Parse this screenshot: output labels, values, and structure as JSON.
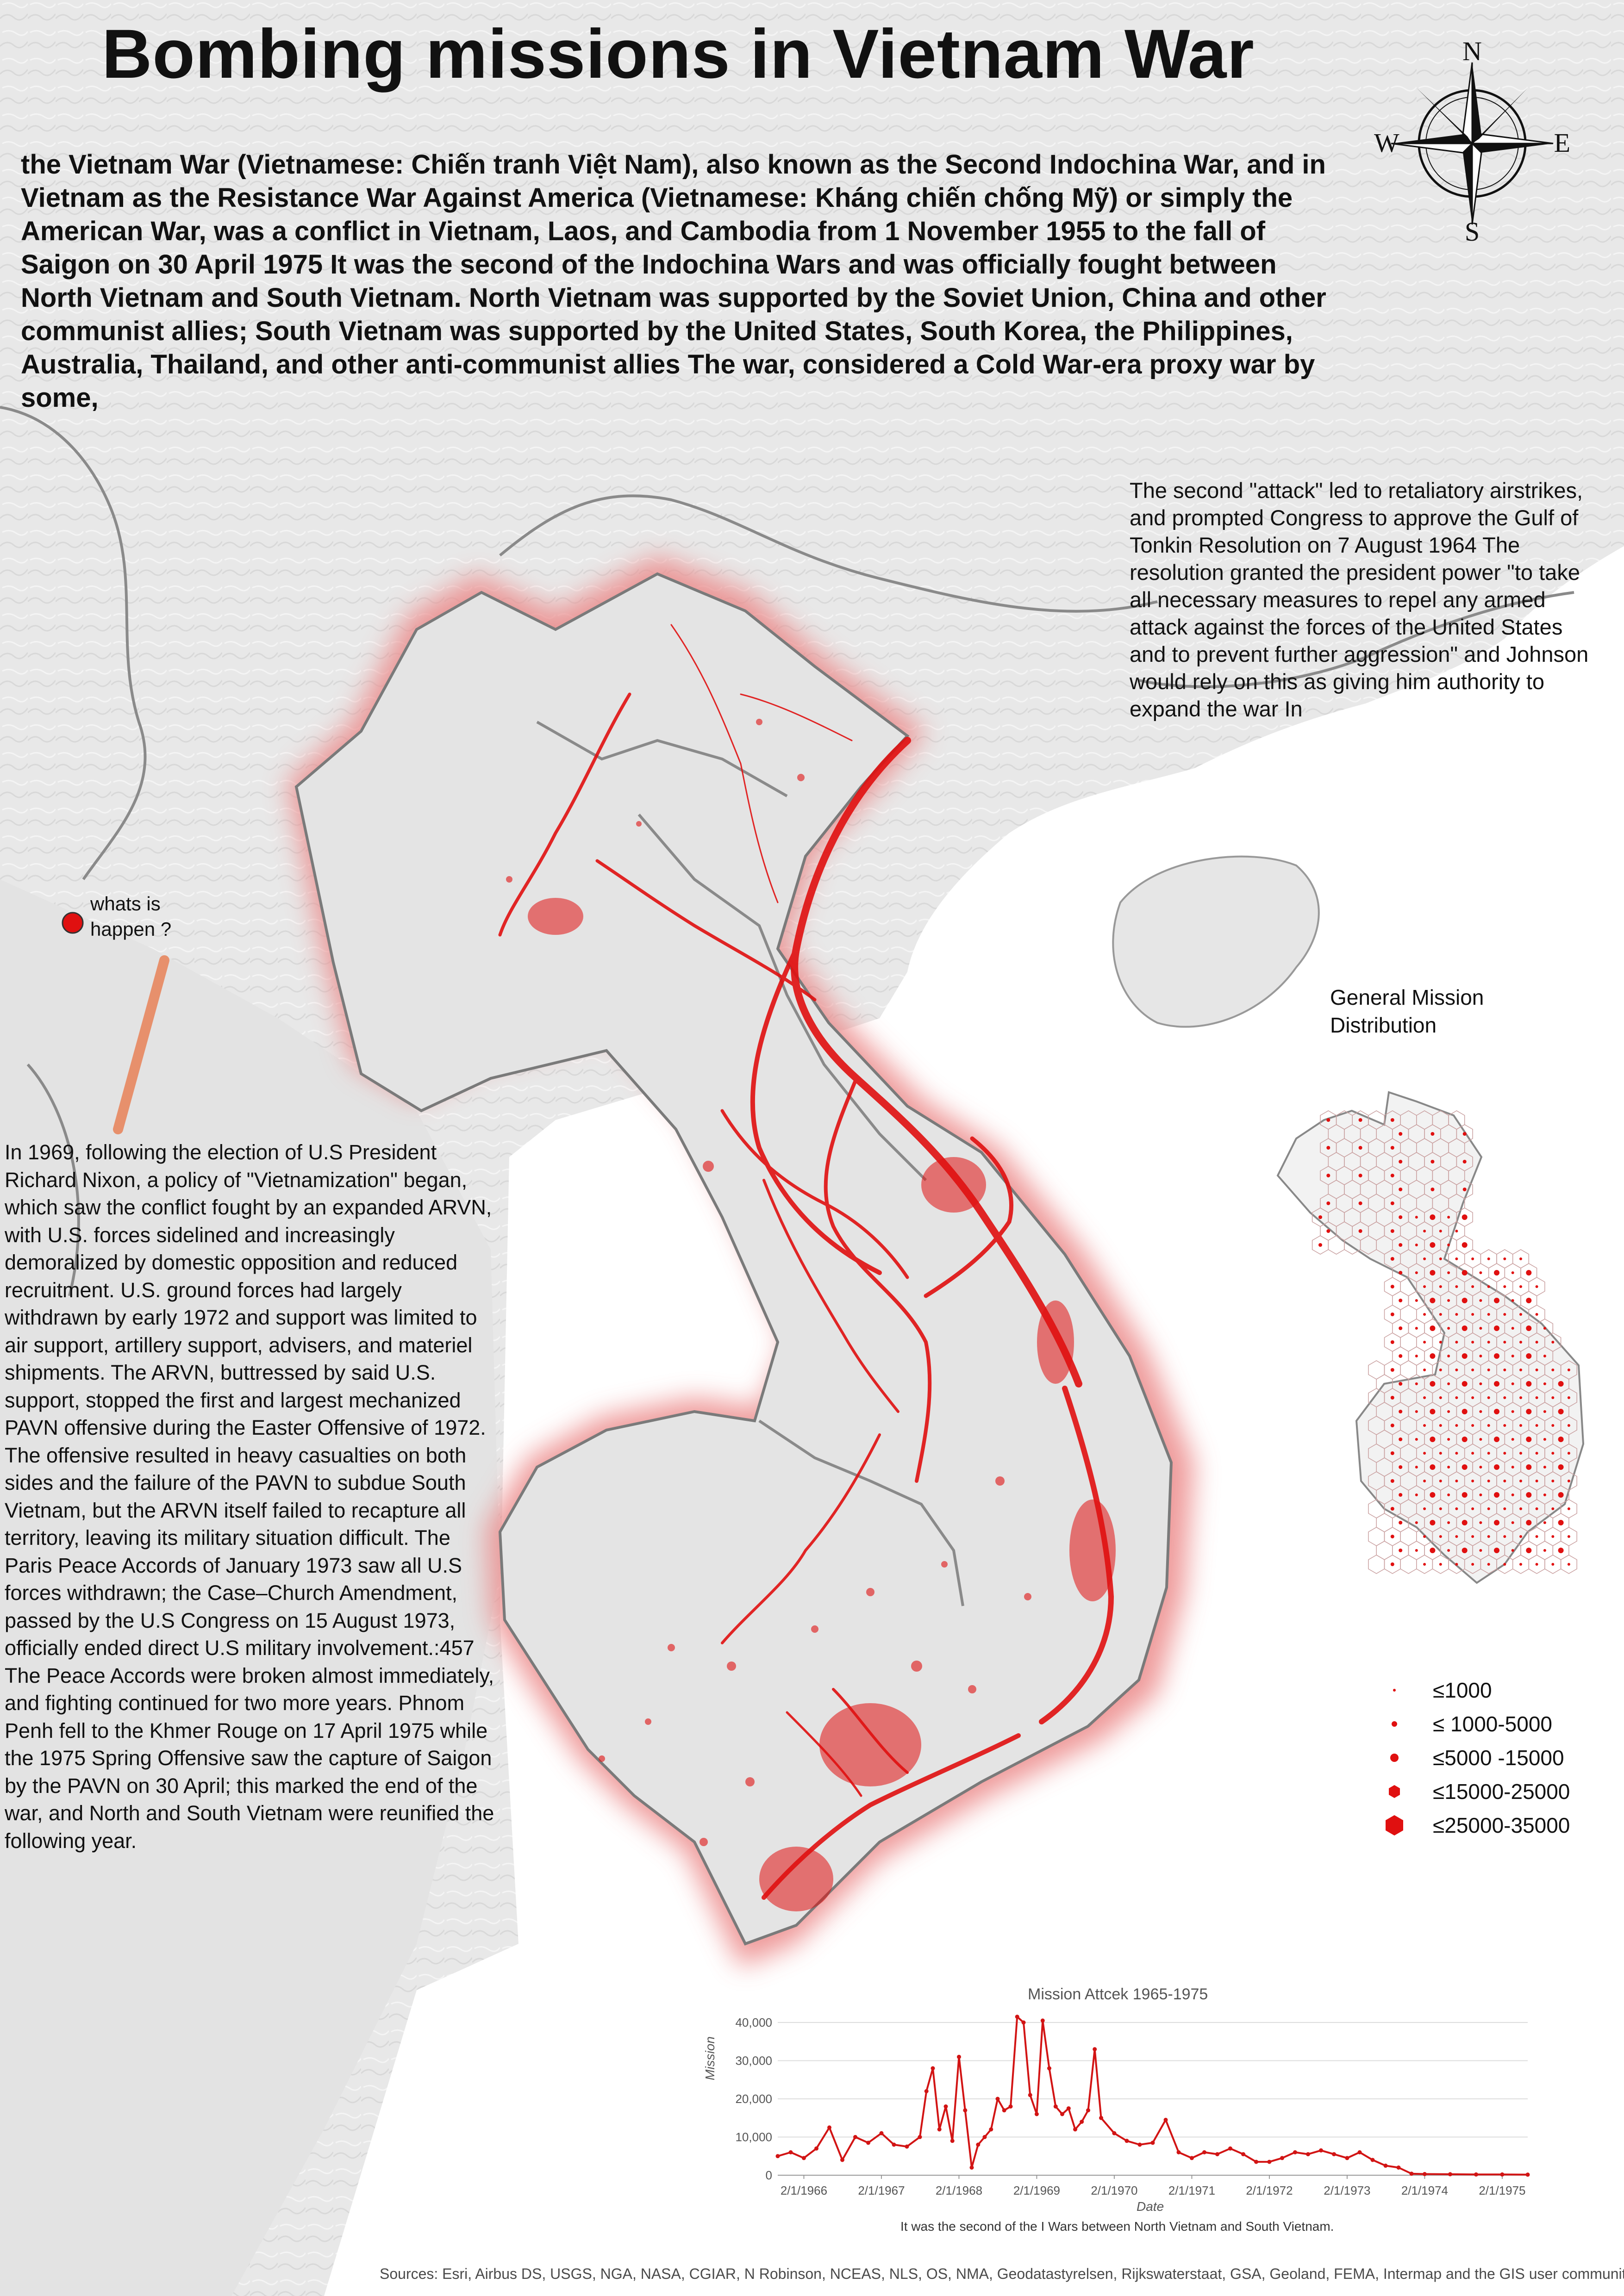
{
  "title": "Bombing missions in Vietnam War",
  "intro_text": "the Vietnam War (Vietnamese: Chiến tranh Việt Nam), also known as the Second Indochina War, and in Vietnam as the Resistance War Against America (Vietnamese: Kháng chiến chống Mỹ) or simply the American War, was a conflict in Vietnam, Laos, and Cambodia from 1 November 1955 to the fall of Saigon on 30 April 1975 It was the second of the Indochina Wars and was officially fought between North Vietnam and South Vietnam. North Vietnam was supported by the Soviet Union, China and other communist allies; South Vietnam was supported by the United States, South Korea, the Philippines, Australia, Thailand, and other anti-communist allies The war, considered a Cold War-era proxy war by some,",
  "right_text": "The second \"attack\" led to retaliatory airstrikes, and prompted Congress to approve the Gulf of Tonkin Resolution on 7 August 1964 The resolution granted the president power \"to take all necessary measures to repel any armed attack against the forces of the United States and to prevent further aggression\" and Johnson would rely on this as giving him authority to expand the war In",
  "left_text": "In 1969, following the election of U.S President Richard Nixon, a policy of \"Vietnamization\" began, which saw the conflict fought by an expanded ARVN, with U.S. forces sidelined and increasingly demoralized by domestic opposition and reduced recruitment. U.S. ground forces had largely withdrawn by early 1972 and support was limited to air support, artillery support, advisers, and materiel shipments. The ARVN, buttressed by said U.S. support, stopped the first and largest mechanized PAVN offensive during the Easter Offensive of 1972. The offensive resulted in heavy casualties on both sides and the failure of the PAVN to subdue South Vietnam, but the ARVN itself failed to recapture all territory, leaving its military situation difficult. The Paris Peace Accords of January 1973 saw all U.S forces withdrawn; the Case–Church Amendment, passed by the U.S Congress on 15 August 1973, officially ended direct U.S military involvement.:457 The Peace Accords were broken almost immediately, and fighting continued for two more years. Phnom Penh fell to the Khmer Rouge on 17 April 1975 while the 1975 Spring Offensive saw the capture of Saigon by the PAVN on 30 April; this marked the end of the war, and North and South Vietnam were reunified the following year.",
  "marker_label": "whats is happen ?",
  "compass": {
    "n": "N",
    "s": "S",
    "e": "E",
    "w": "W"
  },
  "hex_map_title": "General Mission Distribution",
  "legend": [
    {
      "label": "≤1000",
      "symbol": "hexagon-xs"
    },
    {
      "label": "≤ 1000-5000",
      "symbol": "hexagon-s"
    },
    {
      "label": "≤5000 -15000",
      "symbol": "hexagon-m"
    },
    {
      "label": "≤15000-25000",
      "symbol": "hexagon-l"
    },
    {
      "label": "≤25000-35000",
      "symbol": "hexagon-xl"
    }
  ],
  "colors": {
    "mission_red": "#e01010",
    "land": "#e6e6e6",
    "sea": "#ffffff",
    "border": "#8a8a8a",
    "halo": "#f2a0a0"
  },
  "chart_data": {
    "type": "line",
    "title": "Mission Attcek  1965-1975",
    "xlabel": "Date",
    "ylabel": "Mission",
    "caption": "It was the second of the I Wars  between North Vietnam and South Vietnam.",
    "ylim": [
      0,
      40000
    ],
    "yticks": [
      "0",
      "10,000",
      "20,000",
      "30,000",
      "40,000"
    ],
    "xticks": [
      "2/1/1966",
      "2/1/1967",
      "2/1/1968",
      "2/1/1969",
      "2/1/1970",
      "2/1/1971",
      "2/1/1972",
      "2/1/1973",
      "2/1/1974",
      "2/1/1975"
    ],
    "xrange": [
      "1965-10-01",
      "1975-06-01"
    ],
    "grid": true,
    "series": [
      {
        "color": "#d21414",
        "points": [
          [
            "1965-10-01",
            5000
          ],
          [
            "1965-12-01",
            6000
          ],
          [
            "1966-02-01",
            4500
          ],
          [
            "1966-04-01",
            7000
          ],
          [
            "1966-06-01",
            12500
          ],
          [
            "1966-08-01",
            4000
          ],
          [
            "1966-10-01",
            10000
          ],
          [
            "1966-12-01",
            8500
          ],
          [
            "1967-02-01",
            11000
          ],
          [
            "1967-04-01",
            8000
          ],
          [
            "1967-06-01",
            7500
          ],
          [
            "1967-08-01",
            10000
          ],
          [
            "1967-09-01",
            22000
          ],
          [
            "1967-10-01",
            28000
          ],
          [
            "1967-11-01",
            12000
          ],
          [
            "1967-12-01",
            18000
          ],
          [
            "1968-01-01",
            9000
          ],
          [
            "1968-02-01",
            31000
          ],
          [
            "1968-03-01",
            17000
          ],
          [
            "1968-04-01",
            2000
          ],
          [
            "1968-05-01",
            8000
          ],
          [
            "1968-06-01",
            10000
          ],
          [
            "1968-07-01",
            12000
          ],
          [
            "1968-08-01",
            20000
          ],
          [
            "1968-09-01",
            17000
          ],
          [
            "1968-10-01",
            18000
          ],
          [
            "1968-11-01",
            41500
          ],
          [
            "1968-12-01",
            40000
          ],
          [
            "1969-01-01",
            21000
          ],
          [
            "1969-02-01",
            16000
          ],
          [
            "1969-03-01",
            40500
          ],
          [
            "1969-04-01",
            28000
          ],
          [
            "1969-05-01",
            18000
          ],
          [
            "1969-06-01",
            16000
          ],
          [
            "1969-07-01",
            17500
          ],
          [
            "1969-08-01",
            12000
          ],
          [
            "1969-09-01",
            14000
          ],
          [
            "1969-10-01",
            17000
          ],
          [
            "1969-11-01",
            33000
          ],
          [
            "1969-12-01",
            15000
          ],
          [
            "1970-02-01",
            11000
          ],
          [
            "1970-04-01",
            9000
          ],
          [
            "1970-06-01",
            8000
          ],
          [
            "1970-08-01",
            8500
          ],
          [
            "1970-10-01",
            14500
          ],
          [
            "1970-12-01",
            6000
          ],
          [
            "1971-02-01",
            4500
          ],
          [
            "1971-04-01",
            6000
          ],
          [
            "1971-06-01",
            5500
          ],
          [
            "1971-08-01",
            7000
          ],
          [
            "1971-10-01",
            5500
          ],
          [
            "1971-12-01",
            3500
          ],
          [
            "1972-02-01",
            3500
          ],
          [
            "1972-04-01",
            4500
          ],
          [
            "1972-06-01",
            6000
          ],
          [
            "1972-08-01",
            5500
          ],
          [
            "1972-10-01",
            6500
          ],
          [
            "1972-12-01",
            5500
          ],
          [
            "1973-02-01",
            4500
          ],
          [
            "1973-04-01",
            6000
          ],
          [
            "1973-06-01",
            4000
          ],
          [
            "1973-08-01",
            2500
          ],
          [
            "1973-10-01",
            2000
          ],
          [
            "1973-12-01",
            400
          ],
          [
            "1974-02-01",
            300
          ],
          [
            "1974-06-01",
            250
          ],
          [
            "1974-10-01",
            200
          ],
          [
            "1975-02-01",
            200
          ],
          [
            "1975-06-01",
            150
          ]
        ]
      }
    ]
  },
  "sources": "Sources: Esri, Airbus DS, USGS, NGA, NASA, CGIAR, N Robinson, NCEAS, NLS, OS, NMA, Geodatastyrelsen, Rijkswaterstaat, GSA, Geoland, FEMA, Intermap and the GIS user community"
}
